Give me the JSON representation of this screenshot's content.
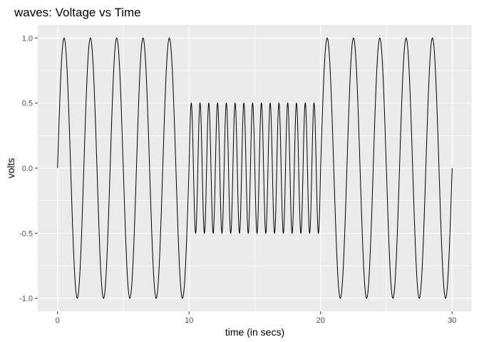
{
  "chart_data": {
    "type": "line",
    "title": "waves: Voltage vs Time",
    "xlabel": "time (in secs)",
    "ylabel": "volts",
    "xlim": [
      -1.5,
      31.5
    ],
    "ylim": [
      -1.1,
      1.1
    ],
    "x_ticks": [
      0,
      10,
      20,
      30
    ],
    "x_tick_labels": [
      "0",
      "10",
      "20",
      "30"
    ],
    "y_ticks": [
      -1.0,
      -0.5,
      0.0,
      0.5,
      1.0
    ],
    "y_tick_labels": [
      "-1.0",
      "-0.5",
      "0.0",
      "0.5",
      "1.0"
    ],
    "grid": true,
    "series": [
      {
        "segments": [
          {
            "x_start": 0,
            "x_end": 10,
            "amplitude": 1.0,
            "frequency_hz": 0.5
          },
          {
            "x_start": 10,
            "x_end": 20,
            "amplitude": 0.5,
            "frequency_hz": 1.5
          },
          {
            "x_start": 20,
            "x_end": 30,
            "amplitude": 1.0,
            "frequency_hz": 0.5
          }
        ],
        "color": "#000000"
      }
    ],
    "panel_background": "#ebebeb",
    "grid_color": "#ffffff"
  }
}
